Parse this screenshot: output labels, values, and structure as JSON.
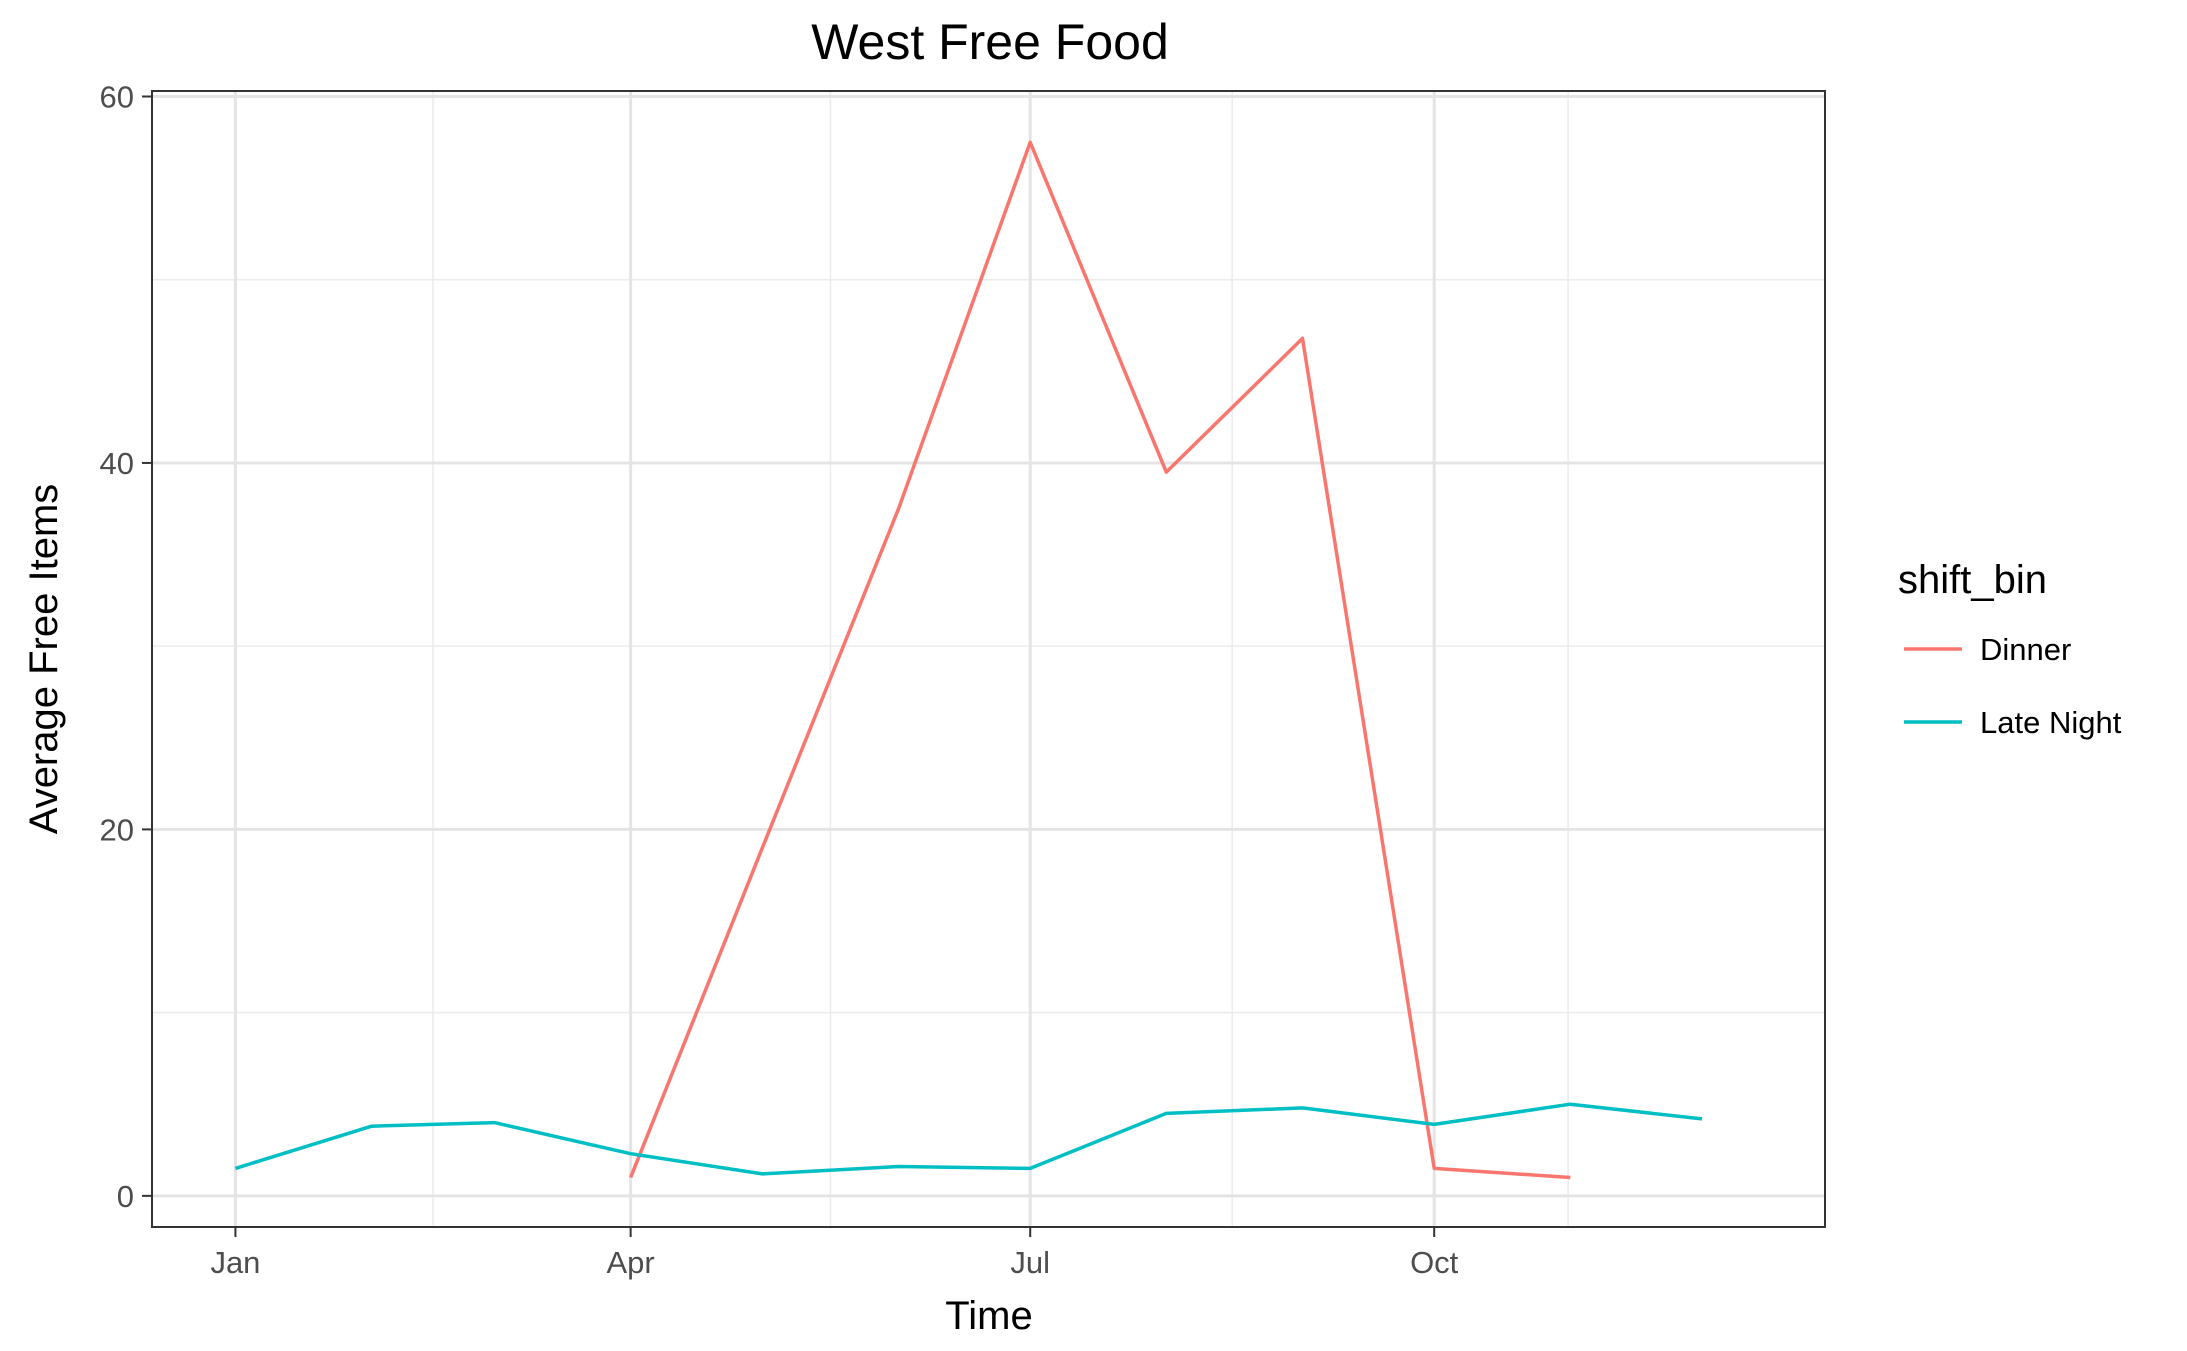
{
  "chart_data": {
    "type": "line",
    "title": "West Free Food",
    "xlabel": "Time",
    "ylabel": "Average Free Items",
    "x_ticks": [
      "Jan",
      "Apr",
      "Jul",
      "Oct"
    ],
    "y_ticks": [
      0,
      20,
      40,
      60
    ],
    "ylim": [
      -1.7,
      60.3
    ],
    "xlim": [
      "2017-12-13",
      "2018-12-29"
    ],
    "grid": true,
    "legend": {
      "title": "shift_bin",
      "position": "right"
    },
    "series": [
      {
        "name": "Dinner",
        "color": "#F8766D",
        "points": [
          {
            "x": "2018-04-01",
            "y": 1.0
          },
          {
            "x": "2018-05-01",
            "y": 19.0
          },
          {
            "x": "2018-06-01",
            "y": 37.5
          },
          {
            "x": "2018-07-01",
            "y": 57.5
          },
          {
            "x": "2018-08-01",
            "y": 39.5
          },
          {
            "x": "2018-09-01",
            "y": 46.8
          },
          {
            "x": "2018-10-01",
            "y": 1.5
          },
          {
            "x": "2018-11-01",
            "y": 1.0
          }
        ]
      },
      {
        "name": "Late Night",
        "color": "#00BFC4",
        "points": [
          {
            "x": "2018-01-01",
            "y": 1.5
          },
          {
            "x": "2018-02-01",
            "y": 3.8
          },
          {
            "x": "2018-03-01",
            "y": 4.0
          },
          {
            "x": "2018-04-01",
            "y": 2.3
          },
          {
            "x": "2018-05-01",
            "y": 1.2
          },
          {
            "x": "2018-06-01",
            "y": 1.6
          },
          {
            "x": "2018-07-01",
            "y": 1.5
          },
          {
            "x": "2018-08-01",
            "y": 4.5
          },
          {
            "x": "2018-09-01",
            "y": 4.8
          },
          {
            "x": "2018-10-01",
            "y": 3.9
          },
          {
            "x": "2018-11-01",
            "y": 5.0
          },
          {
            "x": "2018-12-01",
            "y": 4.2
          }
        ]
      }
    ]
  }
}
